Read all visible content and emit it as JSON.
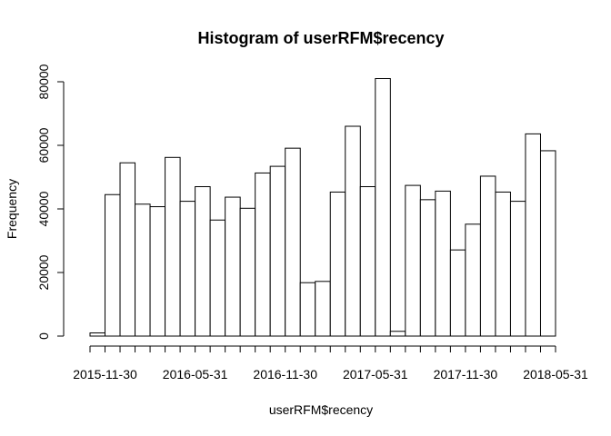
{
  "chart_data": {
    "type": "bar",
    "title": "Histogram of userRFM$recency",
    "xlabel": "userRFM$recency",
    "ylabel": "Frequency",
    "x_tick_labels": [
      "2015-11-30",
      "2016-05-31",
      "2016-11-30",
      "2017-05-31",
      "2017-11-30",
      "2018-05-31"
    ],
    "y_ticks": [
      0,
      20000,
      40000,
      60000,
      80000
    ],
    "ylim": [
      0,
      82000
    ],
    "bin_width": "1 month",
    "bin_starts": [
      "2015-11-01",
      "2015-12-01",
      "2016-01-01",
      "2016-02-01",
      "2016-03-01",
      "2016-04-01",
      "2016-05-01",
      "2016-06-01",
      "2016-07-01",
      "2016-08-01",
      "2016-09-01",
      "2016-10-01",
      "2016-11-01",
      "2016-12-01",
      "2017-01-01",
      "2017-02-01",
      "2017-03-01",
      "2017-04-01",
      "2017-05-01",
      "2017-06-01",
      "2017-07-01",
      "2017-08-01",
      "2017-09-01",
      "2017-10-01",
      "2017-11-01",
      "2017-12-01",
      "2018-01-01",
      "2018-02-01",
      "2018-03-01",
      "2018-04-01",
      "2018-05-01"
    ],
    "values": [
      1000,
      44500,
      54500,
      41500,
      40700,
      56200,
      42400,
      47000,
      36500,
      43700,
      40200,
      51300,
      53400,
      59100,
      16800,
      17200,
      45300,
      66000,
      47000,
      81000,
      1500,
      47400,
      42900,
      45600,
      27100,
      35200,
      50300,
      45300,
      42400,
      63600,
      58300
    ],
    "grid": false,
    "legend": "none"
  }
}
